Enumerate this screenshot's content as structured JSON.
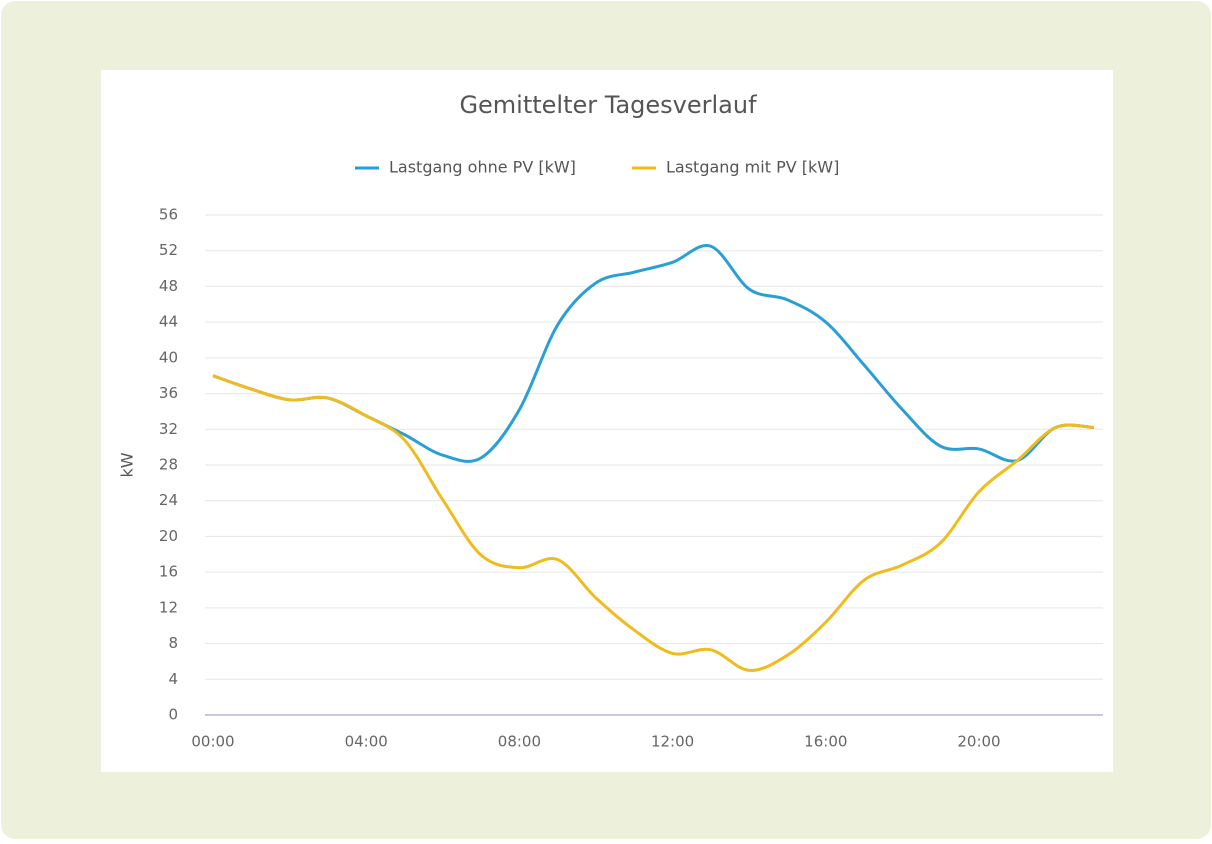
{
  "chart_data": {
    "type": "line",
    "title": "Gemittelter Tagesverlauf",
    "y_label": "kW",
    "categories": [
      "00:00",
      null,
      null,
      null,
      "04:00",
      null,
      null,
      null,
      "08:00",
      null,
      null,
      null,
      "12:00",
      null,
      null,
      null,
      "16:00",
      null,
      null,
      null,
      "20:00",
      null,
      null,
      null
    ],
    "series": [
      {
        "name": "Lastgang ohne PV [kW]",
        "color": "#2a9fd6",
        "values": [
          38,
          36.5,
          35.3,
          35.5,
          33.5,
          31.4,
          29.1,
          28.8,
          34.2,
          43.7,
          48.4,
          49.6,
          50.7,
          52.5,
          47.7,
          46.5,
          44,
          39.2,
          34.2,
          30.1,
          29.8,
          28.5,
          32.2,
          32.2
        ]
      },
      {
        "name": "Lastgang mit PV [kW]",
        "color": "#f0bb1e",
        "values": [
          38,
          36.5,
          35.3,
          35.5,
          33.5,
          30.8,
          24.1,
          17.9,
          16.5,
          17.4,
          13.1,
          9.5,
          6.9,
          7.3,
          5,
          6.7,
          10.4,
          15.1,
          16.8,
          19.3,
          25,
          28.5,
          32.2,
          32.2
        ]
      }
    ],
    "ylim": [
      0,
      56
    ],
    "yticks": [
      0,
      4,
      8,
      12,
      16,
      20,
      24,
      28,
      32,
      36,
      40,
      44,
      48,
      52,
      56
    ],
    "grid": true,
    "legend": "top"
  }
}
